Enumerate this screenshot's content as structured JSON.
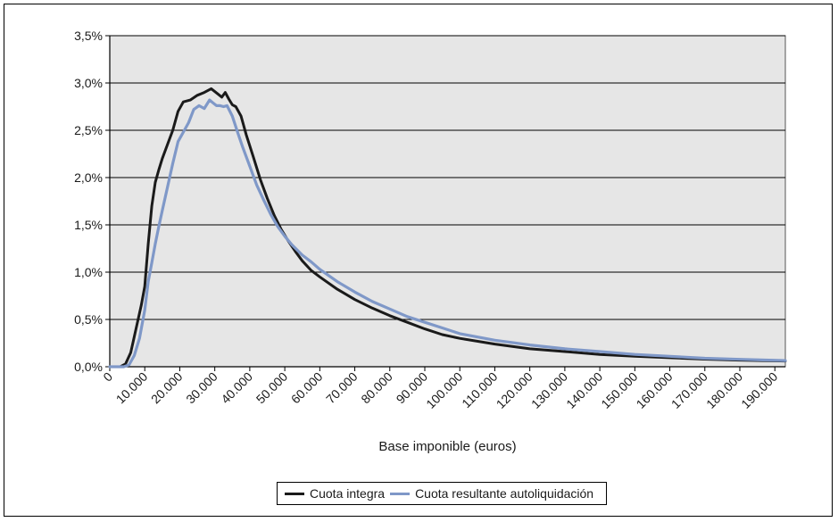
{
  "chart_data": {
    "type": "line",
    "title": "",
    "xlabel": "Base imponible (euros)",
    "ylabel": "",
    "xlim": [
      0,
      193000
    ],
    "ylim": [
      0,
      0.035
    ],
    "x_ticks": [
      0,
      10000,
      20000,
      30000,
      40000,
      50000,
      60000,
      70000,
      80000,
      90000,
      100000,
      110000,
      120000,
      130000,
      140000,
      150000,
      160000,
      170000,
      180000,
      190000
    ],
    "x_tick_labels": [
      "0",
      "10.000",
      "20.000",
      "30.000",
      "40.000",
      "50.000",
      "60.000",
      "70.000",
      "80.000",
      "90.000",
      "100.000",
      "110.000",
      "120.000",
      "130.000",
      "140.000",
      "150.000",
      "160.000",
      "170.000",
      "180.000",
      "190.000"
    ],
    "y_ticks": [
      0,
      0.005,
      0.01,
      0.015,
      0.02,
      0.025,
      0.03,
      0.035
    ],
    "y_tick_labels": [
      "0,0%",
      "0,5%",
      "1,0%",
      "1,5%",
      "2,0%",
      "2,5%",
      "3,0%",
      "3,5%"
    ],
    "grid": "horizontal",
    "plot_background": "#e6e6e6",
    "legend_position": "bottom",
    "series": [
      {
        "name": "Cuota integra",
        "color": "#1a1a1a",
        "x": [
          0,
          3000,
          4500,
          6000,
          7500,
          9000,
          10000,
          11000,
          12000,
          13000,
          14000,
          15000,
          16500,
          18000,
          19500,
          21000,
          23000,
          25000,
          27000,
          29000,
          31000,
          32000,
          33000,
          34000,
          35000,
          36000,
          37500,
          39000,
          41000,
          43000,
          45000,
          47000,
          49000,
          51000,
          53000,
          55000,
          57500,
          60000,
          65000,
          70000,
          75000,
          80000,
          85000,
          90000,
          95000,
          100000,
          110000,
          120000,
          130000,
          140000,
          150000,
          160000,
          170000,
          180000,
          193000
        ],
        "y": [
          0,
          0,
          0.0003,
          0.0015,
          0.004,
          0.0065,
          0.0085,
          0.013,
          0.017,
          0.0195,
          0.0208,
          0.022,
          0.0235,
          0.025,
          0.027,
          0.028,
          0.0282,
          0.0287,
          0.029,
          0.0294,
          0.0288,
          0.0285,
          0.029,
          0.0283,
          0.0277,
          0.0275,
          0.0265,
          0.0245,
          0.0222,
          0.0198,
          0.0178,
          0.016,
          0.0145,
          0.0133,
          0.0122,
          0.0112,
          0.0102,
          0.0095,
          0.0082,
          0.0071,
          0.0062,
          0.0054,
          0.0047,
          0.004,
          0.0034,
          0.003,
          0.0024,
          0.0019,
          0.0016,
          0.0013,
          0.0011,
          0.00095,
          0.0008,
          0.0007,
          0.0006
        ]
      },
      {
        "name": "Cuota resultante autoliquidación",
        "color": "#7f98c8",
        "x": [
          0,
          4000,
          5500,
          7000,
          8500,
          10000,
          11000,
          12000,
          13000,
          14000,
          15000,
          16500,
          18000,
          19500,
          21000,
          22500,
          24000,
          25500,
          27000,
          28500,
          29500,
          30500,
          31500,
          32500,
          33500,
          35000,
          36500,
          38000,
          40000,
          42000,
          44000,
          46000,
          48000,
          50000,
          52000,
          55000,
          57500,
          60000,
          65000,
          70000,
          75000,
          80000,
          85000,
          90000,
          95000,
          100000,
          110000,
          120000,
          130000,
          140000,
          150000,
          160000,
          170000,
          180000,
          193000
        ],
        "y": [
          0,
          0,
          0.0002,
          0.0012,
          0.003,
          0.006,
          0.009,
          0.011,
          0.013,
          0.0148,
          0.0165,
          0.019,
          0.0215,
          0.0238,
          0.0248,
          0.0258,
          0.0272,
          0.0276,
          0.0273,
          0.0282,
          0.0279,
          0.0276,
          0.0276,
          0.0275,
          0.0276,
          0.0265,
          0.0248,
          0.0232,
          0.0212,
          0.0192,
          0.0176,
          0.0161,
          0.0148,
          0.0138,
          0.0129,
          0.0118,
          0.0111,
          0.0103,
          0.009,
          0.0079,
          0.0069,
          0.0061,
          0.0053,
          0.0047,
          0.0041,
          0.0035,
          0.0028,
          0.0023,
          0.0019,
          0.0016,
          0.0013,
          0.0011,
          0.0009,
          0.00078,
          0.00065
        ]
      }
    ]
  }
}
